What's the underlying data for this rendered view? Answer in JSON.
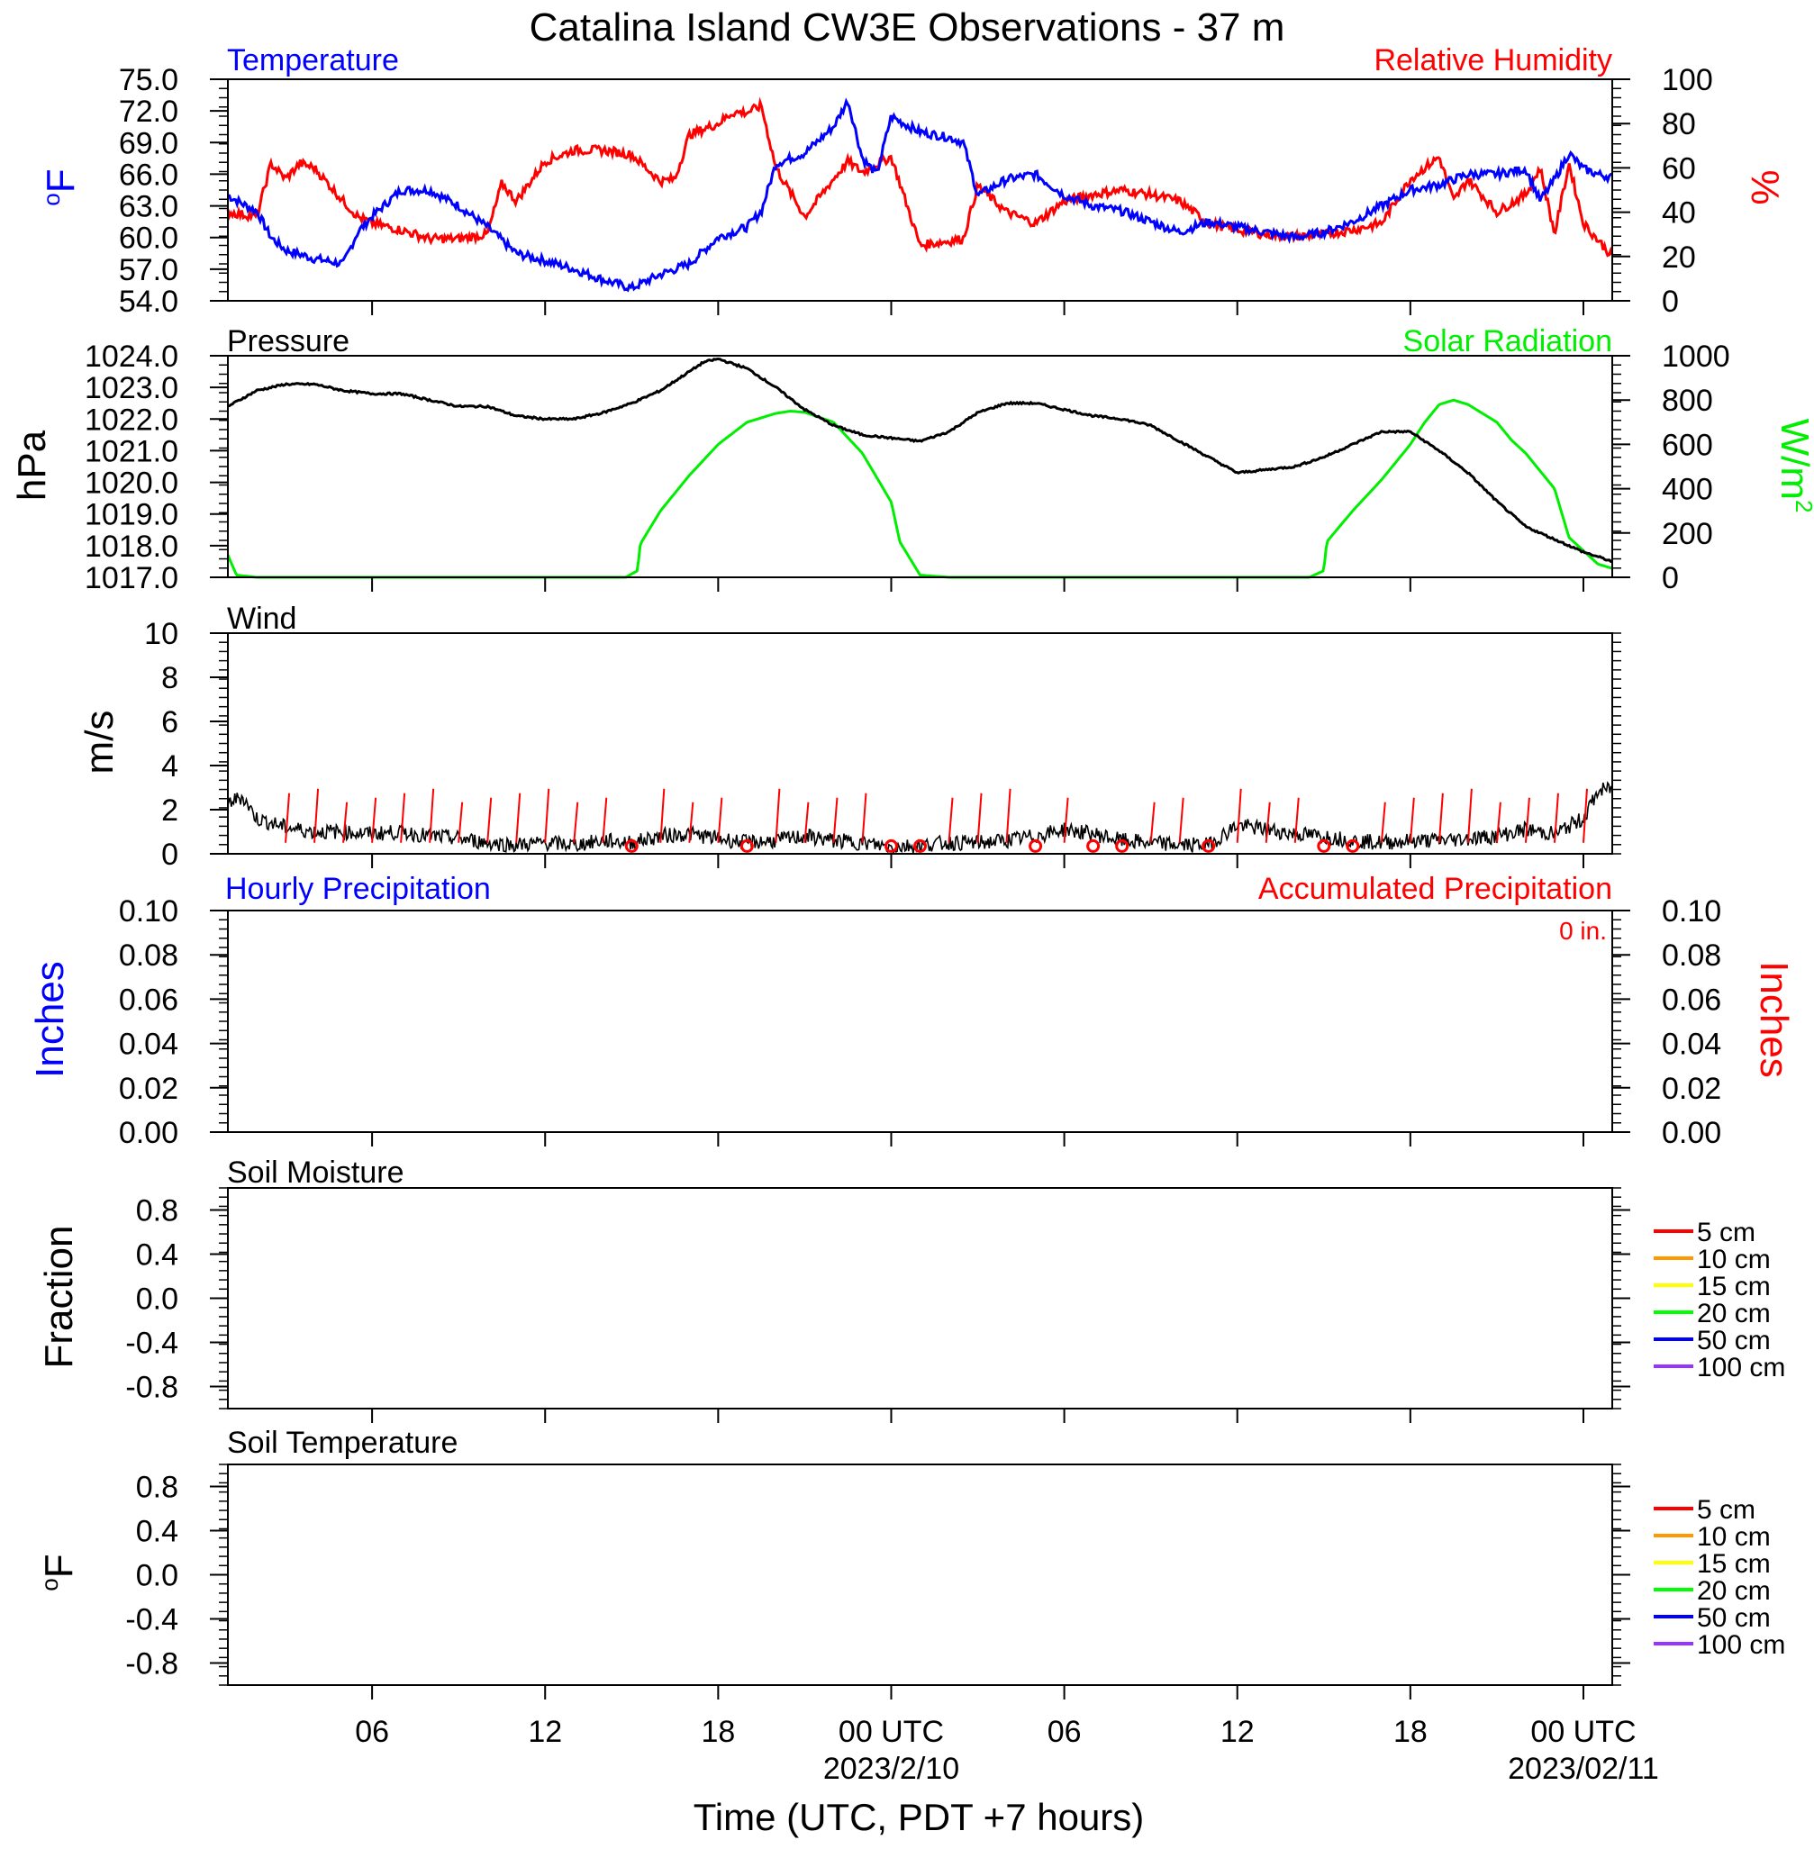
{
  "title": "Catalina Island CW3E Observations - 37 m",
  "x_axis": {
    "label": "Time (UTC, PDT +7 hours)",
    "range_hours": [
      0,
      48
    ],
    "ticks": [
      {
        "h": 5,
        "label": "06",
        "date": ""
      },
      {
        "h": 11,
        "label": "12",
        "date": ""
      },
      {
        "h": 17,
        "label": "18",
        "date": ""
      },
      {
        "h": 23,
        "label": "00 UTC",
        "date": "2023/2/10"
      },
      {
        "h": 29,
        "label": "06",
        "date": ""
      },
      {
        "h": 35,
        "label": "12",
        "date": ""
      },
      {
        "h": 41,
        "label": "18",
        "date": ""
      },
      {
        "h": 47,
        "label": "00 UTC",
        "date": "2023/02/11"
      }
    ]
  },
  "colors": {
    "temperature": "#0000ff",
    "humidity": "#ff0000",
    "pressure": "#000000",
    "solar": "#00ee00",
    "wind": "#000000",
    "barb": "#ff0000",
    "accum": "#ff0000",
    "hourly": "#0000ff"
  },
  "panels": {
    "temp_rh": {
      "left_title": "Temperature",
      "right_title": "Relative Humidity",
      "left_unit": "oF",
      "right_unit": "%",
      "left_ticks": [
        "75.0",
        "72.0",
        "69.0",
        "66.0",
        "63.0",
        "60.0",
        "57.0",
        "54.0"
      ],
      "right_ticks": [
        "100",
        "80",
        "60",
        "40",
        "20",
        "0"
      ]
    },
    "pressure_solar": {
      "left_title": "Pressure",
      "right_title": "Solar Radiation",
      "left_unit": "hPa",
      "right_unit": "W/m2",
      "left_ticks": [
        "1024.0",
        "1023.0",
        "1022.0",
        "1021.0",
        "1020.0",
        "1019.0",
        "1018.0",
        "1017.0"
      ],
      "right_ticks": [
        "1000",
        "800",
        "600",
        "400",
        "200",
        "0"
      ]
    },
    "wind": {
      "title": "Wind",
      "unit": "m/s",
      "ticks": [
        "10",
        "8",
        "6",
        "4",
        "2",
        "0"
      ]
    },
    "precip": {
      "left_title": "Hourly Precipitation",
      "right_title": "Accumulated Precipitation",
      "accum_label": "0 in.",
      "left_unit": "Inches",
      "right_unit": "Inches",
      "left_ticks": [
        "0.10",
        "0.08",
        "0.06",
        "0.04",
        "0.02",
        "0.00"
      ],
      "right_ticks": [
        "0.10",
        "0.08",
        "0.06",
        "0.04",
        "0.02",
        "0.00"
      ]
    },
    "soil_moisture": {
      "title": "Soil Moisture",
      "unit": "Fraction",
      "ticks": [
        "0.8",
        "0.4",
        "0.0",
        "-0.4",
        "-0.8"
      ]
    },
    "soil_temp": {
      "title": "Soil Temperature",
      "unit": "oF",
      "ticks": [
        "0.8",
        "0.4",
        "0.0",
        "-0.4",
        "-0.8"
      ]
    }
  },
  "soil_legend": [
    {
      "label": "5 cm",
      "color": "#ff0000"
    },
    {
      "label": "10 cm",
      "color": "#ff9900"
    },
    {
      "label": "15 cm",
      "color": "#ffff00"
    },
    {
      "label": "20 cm",
      "color": "#00ff00"
    },
    {
      "label": "50 cm",
      "color": "#0000ff"
    },
    {
      "label": "100 cm",
      "color": "#9933ff"
    }
  ],
  "chart_data": [
    {
      "type": "line",
      "panel": "temperature / relative humidity",
      "x_unit": "hours since 2023/2/9 01 UTC (approx)",
      "ylim_left": [
        54,
        75
      ],
      "ylim_right": [
        0,
        100
      ],
      "series": [
        {
          "name": "Temperature",
          "axis": "left",
          "unit": "oF",
          "x": [
            0,
            0.5,
            1,
            1.5,
            2,
            3,
            4,
            4.5,
            5,
            6,
            7,
            8,
            9,
            10,
            11,
            12,
            13,
            14,
            15,
            16,
            17,
            18,
            18.5,
            19,
            20,
            21,
            21.5,
            22,
            22.5,
            23,
            23.3,
            24,
            25,
            25.5,
            26,
            27,
            28,
            29,
            30,
            31,
            32,
            33,
            34,
            35,
            36,
            37,
            38,
            39,
            40,
            41,
            42,
            43,
            44,
            45,
            45.5,
            46,
            46.5,
            47,
            47.5,
            48
          ],
          "values": [
            64.0,
            63.2,
            62.5,
            60.0,
            58.8,
            58.0,
            57.5,
            60.5,
            62.0,
            64.5,
            64.5,
            63.0,
            61.0,
            58.5,
            57.8,
            57.0,
            56.0,
            55.2,
            56.5,
            57.5,
            60.0,
            61.0,
            62.5,
            67.0,
            68.0,
            70.5,
            73.0,
            67.5,
            66.0,
            71.5,
            71.0,
            70.0,
            69.5,
            69.0,
            64.0,
            65.5,
            66.0,
            64.0,
            63.0,
            62.5,
            61.5,
            60.5,
            61.5,
            61.0,
            60.5,
            60.0,
            60.5,
            61.5,
            63.0,
            64.5,
            65.0,
            66.0,
            66.0,
            66.5,
            63.5,
            65.5,
            68.0,
            66.5,
            66.0,
            65.7
          ]
        },
        {
          "name": "Relative Humidity",
          "axis": "right",
          "unit": "%",
          "x": [
            0,
            1,
            1.5,
            2,
            2.5,
            3,
            4,
            4.5,
            5,
            6,
            7,
            8,
            9,
            9.5,
            10,
            11,
            12,
            13,
            14,
            15,
            15.5,
            16,
            17,
            17.5,
            18,
            18.5,
            19,
            20,
            21,
            21.5,
            22,
            23,
            24,
            25,
            25.5,
            26,
            27,
            28,
            29,
            30,
            31,
            32,
            33,
            34,
            35,
            36,
            37,
            38,
            39,
            40,
            41,
            42,
            42.5,
            43,
            44,
            45,
            45.5,
            46,
            46.5,
            47,
            48
          ],
          "values": [
            40,
            38,
            62,
            55,
            62,
            60,
            45,
            38,
            35,
            32,
            28,
            28,
            30,
            53,
            45,
            63,
            68,
            68,
            66,
            54,
            55,
            75,
            80,
            85,
            85,
            88,
            60,
            38,
            55,
            63,
            58,
            65,
            25,
            27,
            28,
            52,
            40,
            35,
            45,
            48,
            50,
            48,
            45,
            35,
            32,
            30,
            29,
            30,
            32,
            35,
            55,
            65,
            45,
            55,
            40,
            48,
            60,
            30,
            62,
            35,
            20
          ]
        }
      ]
    },
    {
      "type": "line",
      "panel": "pressure / solar radiation",
      "ylim_left": [
        1017,
        1024
      ],
      "ylim_right": [
        0,
        1000
      ],
      "series": [
        {
          "name": "Pressure",
          "axis": "left",
          "unit": "hPa",
          "x": [
            0,
            1,
            2,
            3,
            4,
            5,
            6,
            7,
            8,
            9,
            10,
            11,
            12,
            13,
            14,
            15,
            16,
            16.5,
            17,
            18,
            19,
            20,
            21,
            22,
            23,
            24,
            25,
            26,
            27,
            28,
            29,
            30,
            31,
            32,
            33,
            34,
            35,
            36,
            37,
            38,
            39,
            40,
            41,
            42,
            43,
            44,
            45,
            46,
            47,
            48
          ],
          "values": [
            1022.4,
            1022.9,
            1023.1,
            1023.1,
            1022.9,
            1022.8,
            1022.8,
            1022.6,
            1022.4,
            1022.4,
            1022.1,
            1022.0,
            1022.0,
            1022.2,
            1022.5,
            1022.9,
            1023.5,
            1023.8,
            1023.9,
            1023.6,
            1023.0,
            1022.3,
            1021.8,
            1021.5,
            1021.4,
            1021.3,
            1021.6,
            1022.2,
            1022.5,
            1022.5,
            1022.3,
            1022.1,
            1022.0,
            1021.8,
            1021.3,
            1020.8,
            1020.3,
            1020.4,
            1020.5,
            1020.8,
            1021.2,
            1021.6,
            1021.6,
            1021.0,
            1020.3,
            1019.4,
            1018.6,
            1018.2,
            1017.8,
            1017.5
          ]
        },
        {
          "name": "Solar Radiation",
          "axis": "right",
          "unit": "W/m2",
          "x": [
            0,
            0.3,
            1,
            13.8,
            14.2,
            14.3,
            15,
            16,
            17,
            18,
            19,
            19.5,
            20,
            21,
            22,
            23,
            23.3,
            24,
            25,
            37.5,
            38,
            38.1,
            39,
            40,
            41,
            41.5,
            42,
            42.5,
            43,
            43.5,
            44,
            44.5,
            45,
            46,
            46.5,
            47,
            47.5,
            48
          ],
          "values": [
            100,
            10,
            0,
            0,
            30,
            150,
            300,
            460,
            600,
            700,
            740,
            750,
            745,
            700,
            560,
            340,
            160,
            10,
            0,
            0,
            30,
            160,
            300,
            440,
            600,
            700,
            780,
            800,
            780,
            740,
            700,
            620,
            560,
            400,
            180,
            120,
            60,
            40
          ]
        }
      ]
    },
    {
      "type": "line",
      "panel": "wind",
      "ylim": [
        0,
        10
      ],
      "series": [
        {
          "name": "Wind",
          "unit": "m/s",
          "x": [
            0,
            0.5,
            1,
            2,
            3,
            4,
            5,
            6,
            7,
            8,
            9,
            10,
            11,
            12,
            13,
            14,
            15,
            16,
            17,
            18,
            19,
            20,
            21,
            22,
            23,
            24,
            25,
            26,
            27,
            28,
            29,
            30,
            31,
            32,
            33,
            34,
            35,
            36,
            37,
            38,
            39,
            40,
            41,
            42,
            43,
            44,
            45,
            46,
            47,
            47.5,
            48
          ],
          "values": [
            2.3,
            2.6,
            1.6,
            1.2,
            1.0,
            1.0,
            0.9,
            1.0,
            0.8,
            0.7,
            0.5,
            0.4,
            0.5,
            0.4,
            0.6,
            0.5,
            0.8,
            0.9,
            0.7,
            0.5,
            0.6,
            0.8,
            0.6,
            0.5,
            0.3,
            0.4,
            0.5,
            0.5,
            0.6,
            0.8,
            1.1,
            0.9,
            0.6,
            0.5,
            0.4,
            0.4,
            1.3,
            1.1,
            0.9,
            0.8,
            0.6,
            0.5,
            0.6,
            0.6,
            0.7,
            0.8,
            1.1,
            0.9,
            1.6,
            2.8,
            3.0
          ]
        }
      ]
    },
    {
      "type": "line",
      "panel": "precipitation",
      "ylim": [
        0,
        0.1
      ],
      "series": [
        {
          "name": "Hourly Precipitation",
          "unit": "in",
          "x": [
            0,
            48
          ],
          "values": [
            0,
            0
          ]
        },
        {
          "name": "Accumulated Precipitation",
          "unit": "in",
          "x": [
            0,
            48
          ],
          "values": [
            0,
            0
          ]
        }
      ]
    },
    {
      "type": "line",
      "panel": "soil moisture",
      "ylim": [
        -1,
        1
      ],
      "series": []
    },
    {
      "type": "line",
      "panel": "soil temperature",
      "ylim": [
        -1,
        1
      ],
      "series": []
    }
  ]
}
